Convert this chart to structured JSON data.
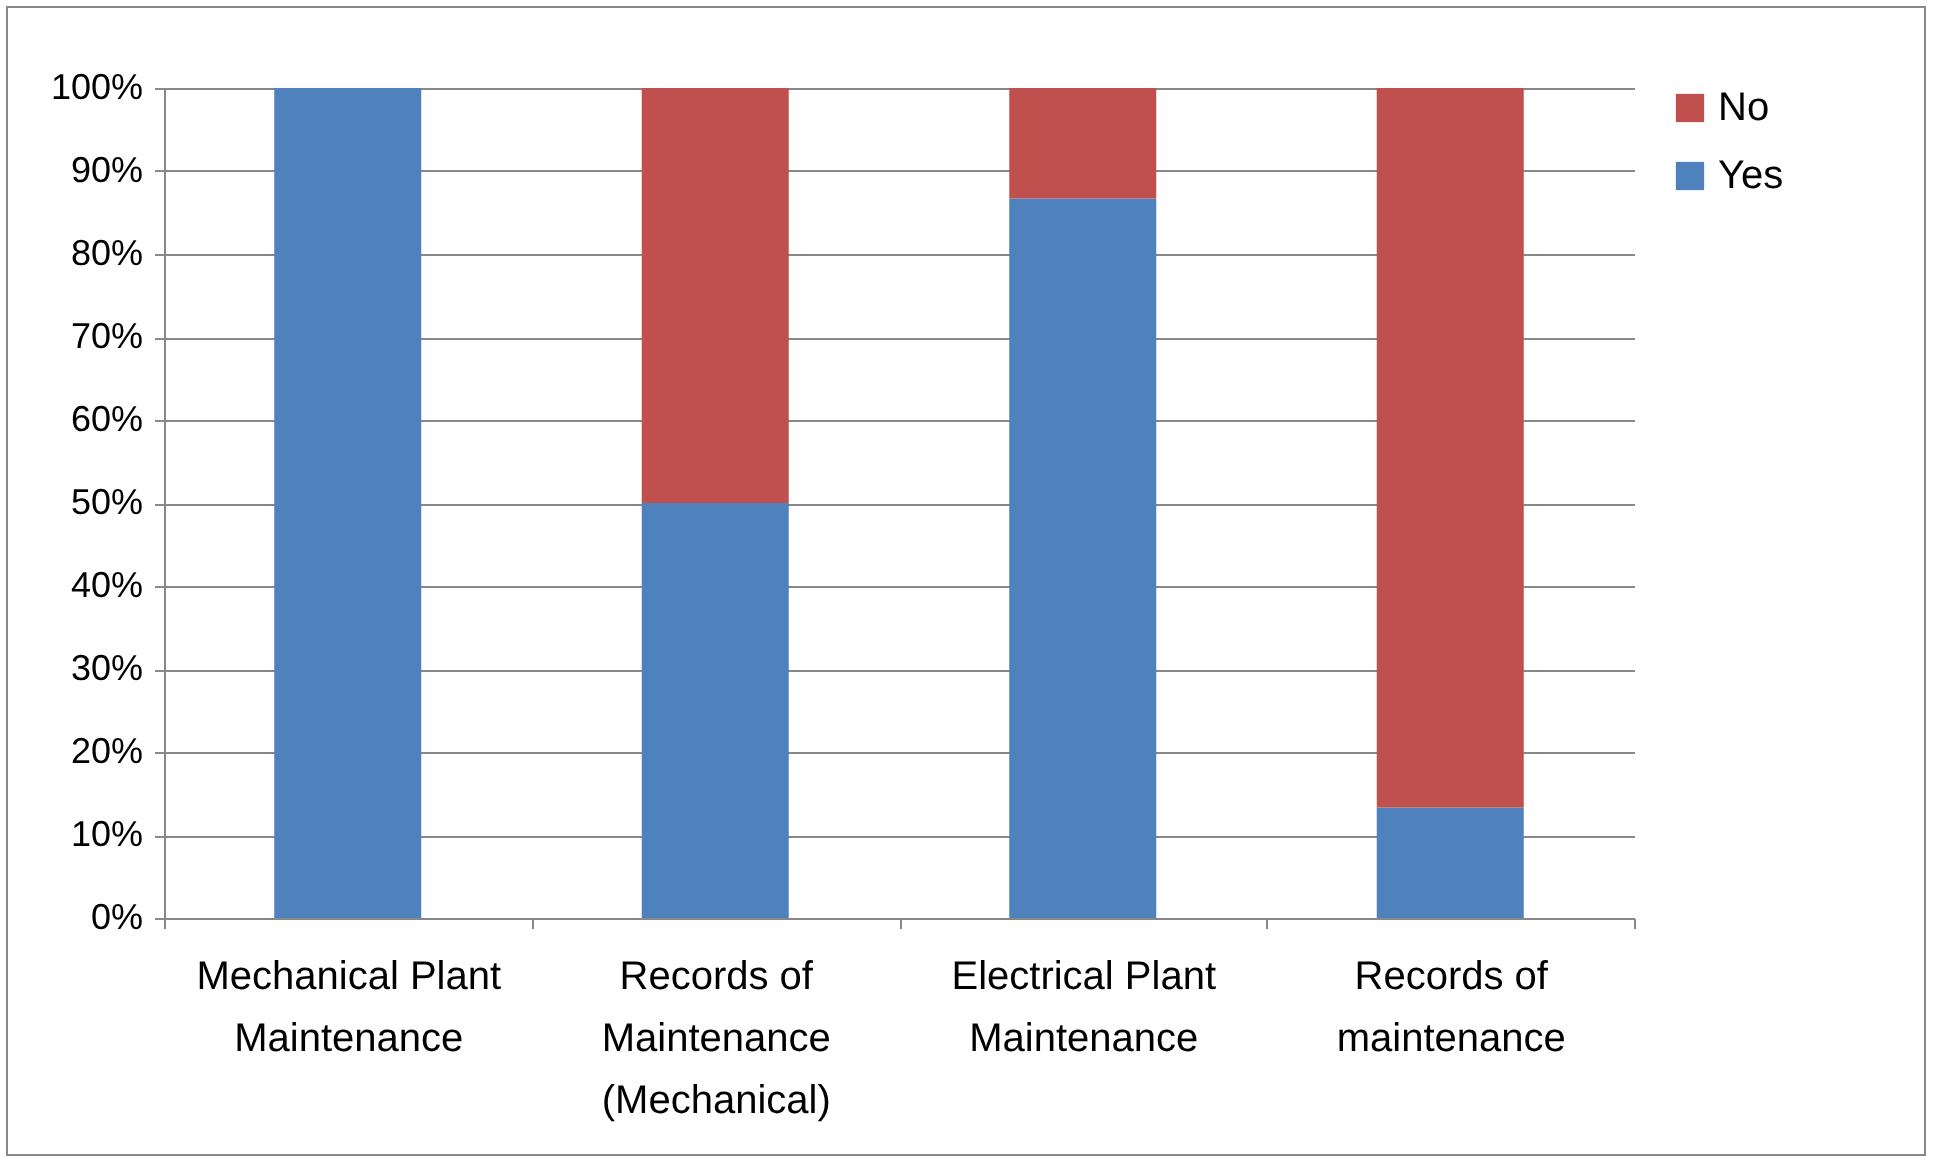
{
  "chart_data": {
    "type": "bar",
    "stacked": true,
    "categories": [
      "Mechanical Plant Maintenance",
      "Records of Maintenance (Mechanical)",
      "Electrical Plant Maintenance",
      "Records of maintenance"
    ],
    "series": [
      {
        "name": "Yes",
        "color": "#4f81bd",
        "values": [
          100,
          50,
          86.7,
          13.3
        ]
      },
      {
        "name": "No",
        "color": "#c0504d",
        "values": [
          0,
          50,
          13.3,
          86.7
        ]
      }
    ],
    "ylim": [
      0,
      100
    ],
    "yticks": [
      {
        "value": 0,
        "label": "0%"
      },
      {
        "value": 10,
        "label": "10%"
      },
      {
        "value": 20,
        "label": "20%"
      },
      {
        "value": 30,
        "label": "30%"
      },
      {
        "value": 40,
        "label": "40%"
      },
      {
        "value": 50,
        "label": "50%"
      },
      {
        "value": 60,
        "label": "60%"
      },
      {
        "value": 70,
        "label": "70%"
      },
      {
        "value": 80,
        "label": "80%"
      },
      {
        "value": 90,
        "label": "90%"
      },
      {
        "value": 100,
        "label": "100%"
      }
    ],
    "grid": "y",
    "legend": "right"
  }
}
